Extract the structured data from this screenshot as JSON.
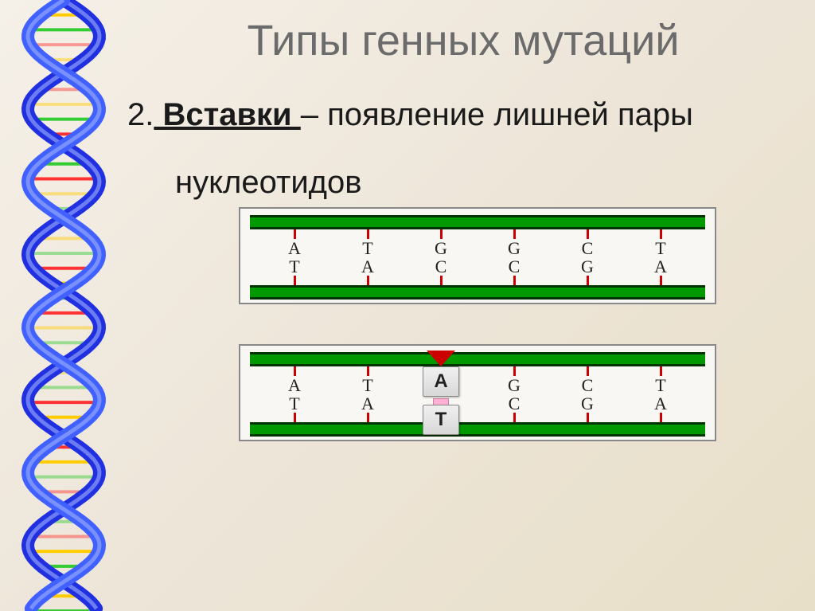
{
  "slide": {
    "title": "Типы генных мутаций",
    "title_fontsize": 54,
    "title_color": "#6b6b6b",
    "item_number": "2.",
    "term": " Вставки ",
    "definition_part1": "– появление лишней пары",
    "definition_line2": "нуклеотидов",
    "subtitle_fontsize": 40,
    "subtitle_color": "#1a1a1a"
  },
  "dna_helix": {
    "backbone_color_1": "#2030e0",
    "backbone_color_2": "#4060ff",
    "rung_colors": [
      "#ff3333",
      "#ffcc00",
      "#33cc33"
    ]
  },
  "diagram": {
    "strand_fill": "#009900",
    "strand_border": "#003300",
    "tick_color": "#cc0000",
    "base_color": "#222222",
    "base_fontsize": 22,
    "box_bg": "#f9f7f3",
    "box_border": "#888888",
    "original": {
      "top": [
        "A",
        "T",
        "G",
        "G",
        "C",
        "T"
      ],
      "bottom": [
        "T",
        "A",
        "C",
        "C",
        "G",
        "A"
      ]
    },
    "mutated": {
      "top": [
        "A",
        "T",
        "",
        "G",
        "C",
        "T"
      ],
      "bottom": [
        "T",
        "A",
        "",
        "C",
        "G",
        "A"
      ],
      "insert_index": 2,
      "insert_top_label": "А",
      "insert_bottom_label": "Т",
      "marker_color": "#cc0000",
      "insert_box_bg": "#e8e8e8",
      "insert_box_fontsize": 24,
      "insert_pink": "#ffb0d4"
    }
  }
}
